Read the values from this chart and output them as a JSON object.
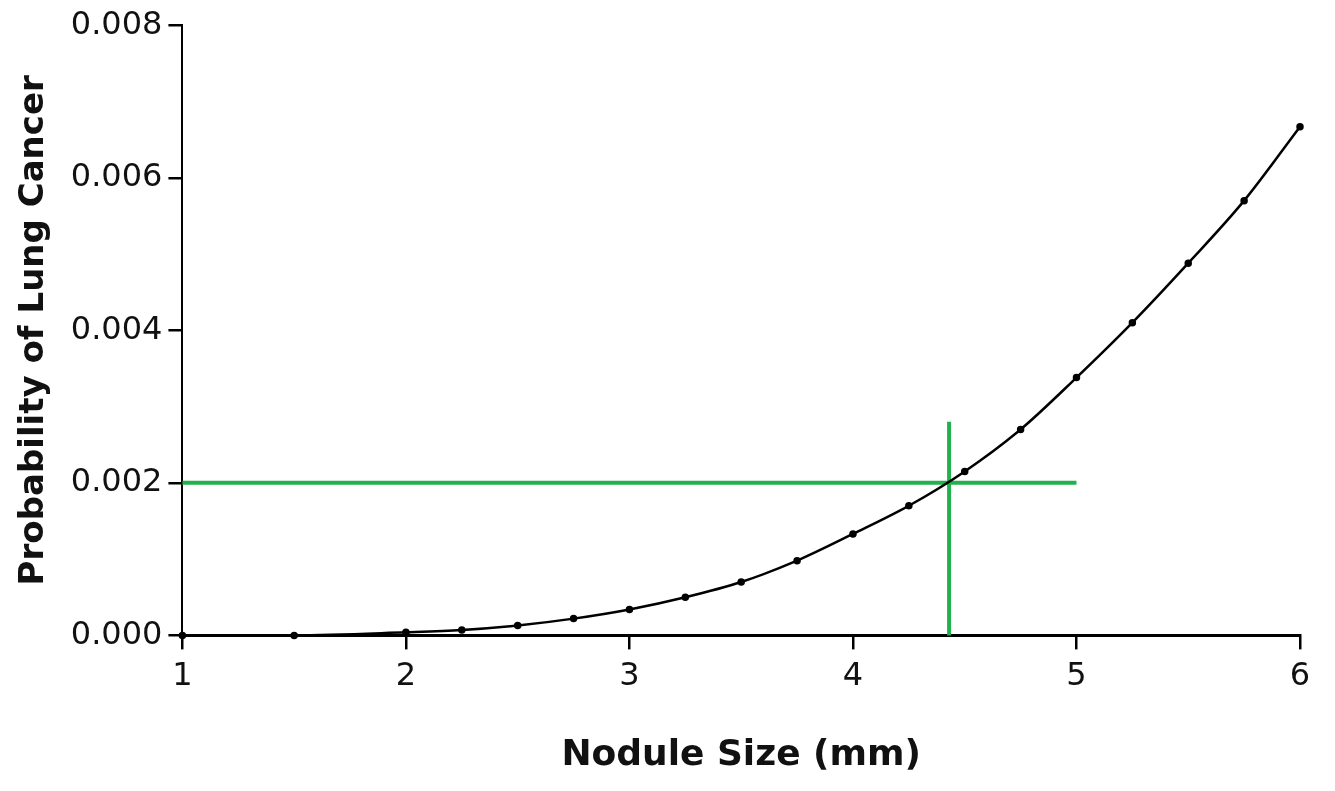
{
  "chart_data": {
    "type": "line",
    "xlabel": "Nodule Size (mm)",
    "ylabel": "Probability of Lung Cancer",
    "xlim": [
      1,
      6
    ],
    "xticks": [
      1,
      2,
      3,
      4,
      5,
      6
    ],
    "ylim": [
      0,
      0.008
    ],
    "yticks": [
      {
        "value": 0,
        "label": "0.000"
      },
      {
        "value": 0.002,
        "label": "0.002"
      },
      {
        "value": 0.004,
        "label": "0.004"
      },
      {
        "value": 0.006,
        "label": "0.006"
      },
      {
        "value": 0.008,
        "label": "0.008"
      }
    ],
    "grid": false,
    "line_style": "solid",
    "series": [
      {
        "color": "#000000",
        "marker": "circle",
        "x": [
          1,
          1.5,
          2,
          2.25,
          2.5,
          2.75,
          3,
          3.25,
          3.5,
          3.75,
          4,
          4.25,
          4.5,
          4.75,
          5,
          5.25,
          5.5,
          5.75,
          6
        ],
        "values": [
          0,
          0,
          4e-05,
          7e-05,
          0.00013,
          0.00022,
          0.00034,
          0.0005,
          0.0007,
          0.00098,
          0.00133,
          0.0017,
          0.00215,
          0.0027,
          0.00338,
          0.0041,
          0.00488,
          0.0057,
          0.00667
        ]
      },
      {
        "color": "#22b14c",
        "marker": "none",
        "x": [
          1,
          5
        ],
        "values": [
          0.002,
          0.002
        ]
      },
      {
        "color": "#22b14c",
        "marker": "none",
        "x": [
          4.43,
          4.43
        ],
        "values": [
          0,
          0.0028
        ]
      }
    ]
  }
}
